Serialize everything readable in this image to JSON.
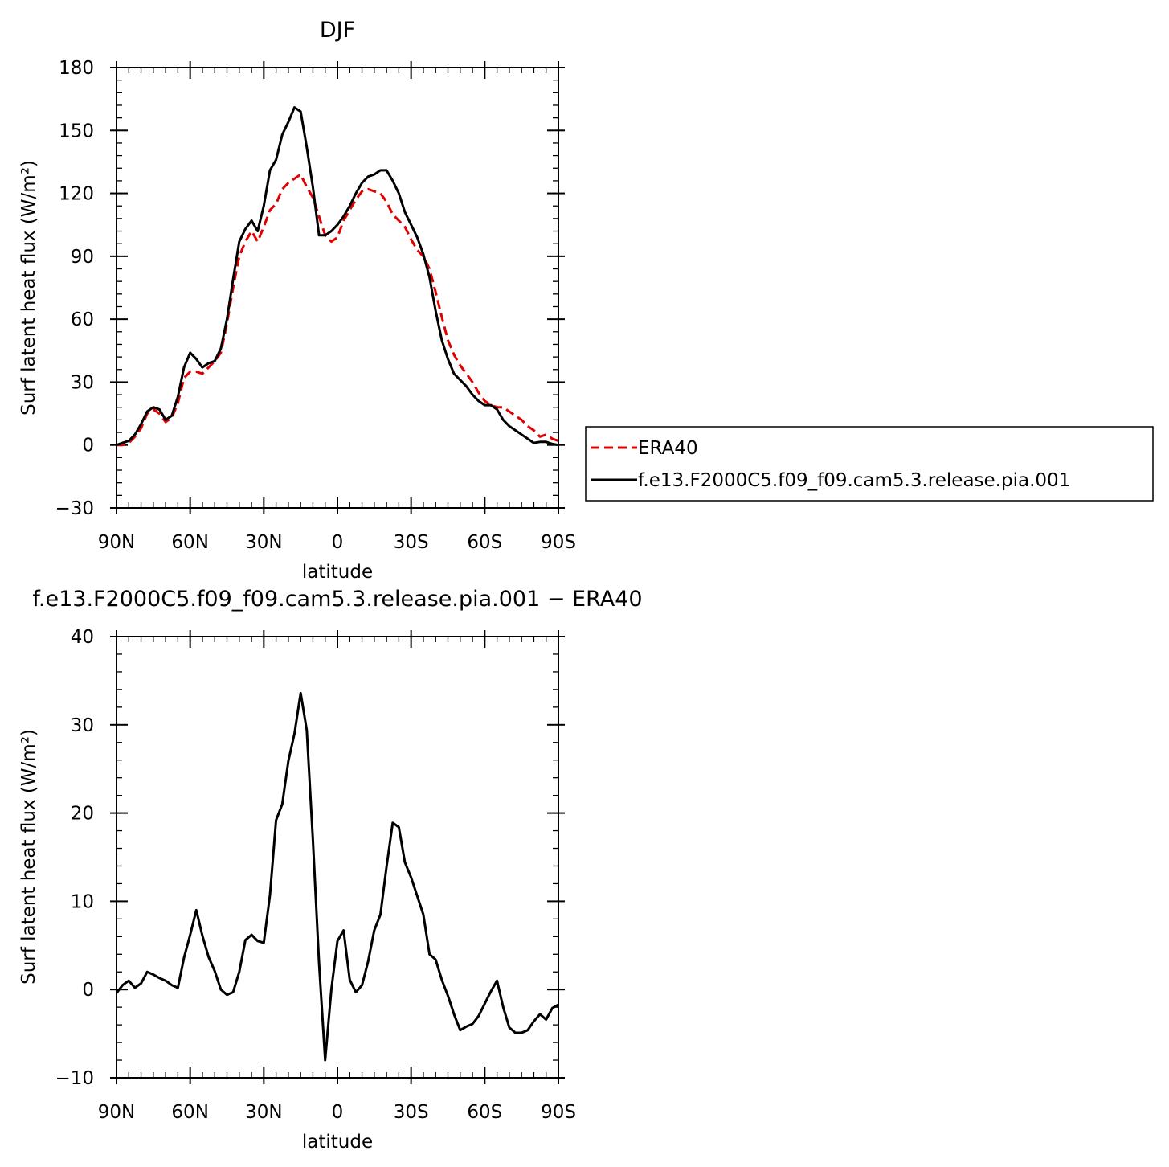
{
  "chart_data": [
    {
      "type": "line",
      "title": "DJF",
      "xlabel": "latitude",
      "ylabel": "Surf latent heat flux (W/m²)",
      "xlim": [
        90,
        -90
      ],
      "ylim": [
        -30,
        180
      ],
      "x_ticks": [
        {
          "value": 90,
          "label": "90N"
        },
        {
          "value": 60,
          "label": "60N"
        },
        {
          "value": 30,
          "label": "30N"
        },
        {
          "value": 0,
          "label": "0"
        },
        {
          "value": -30,
          "label": "30S"
        },
        {
          "value": -60,
          "label": "60S"
        },
        {
          "value": -90,
          "label": "90S"
        }
      ],
      "y_ticks": [
        -30,
        0,
        30,
        60,
        90,
        120,
        150,
        180
      ],
      "y_tick_labels": [
        "−30",
        "0",
        "30",
        "60",
        "90",
        "120",
        "150",
        "180"
      ],
      "legend_position": "right",
      "legend": [
        "ERA40",
        "f.e13.F2000C5.f09_f09.cam5.3.release.pia.001"
      ],
      "series": [
        {
          "name": "ERA40",
          "color": "#e00000",
          "dash": "dashed",
          "points": [
            [
              90,
              0
            ],
            [
              87.5,
              0
            ],
            [
              85,
              1
            ],
            [
              82.5,
              4
            ],
            [
              80,
              8
            ],
            [
              77.5,
              15
            ],
            [
              75,
              17
            ],
            [
              72.5,
              15
            ],
            [
              70,
              11
            ],
            [
              67.5,
              13
            ],
            [
              65,
              20
            ],
            [
              62.5,
              32
            ],
            [
              60,
              35
            ],
            [
              57.5,
              35
            ],
            [
              55,
              34
            ],
            [
              52.5,
              37
            ],
            [
              50,
              40
            ],
            [
              47.5,
              44
            ],
            [
              45,
              58
            ],
            [
              42.5,
              75
            ],
            [
              40,
              90
            ],
            [
              37.5,
              97
            ],
            [
              35,
              102
            ],
            [
              32.5,
              97
            ],
            [
              30,
              104
            ],
            [
              27.5,
              112
            ],
            [
              25,
              115
            ],
            [
              22.5,
              122
            ],
            [
              20,
              125
            ],
            [
              17.5,
              127
            ],
            [
              15,
              129
            ],
            [
              12.5,
              123
            ],
            [
              10,
              118
            ],
            [
              7.5,
              109
            ],
            [
              5,
              100
            ],
            [
              2.5,
              97
            ],
            [
              0,
              99
            ],
            [
              -2.5,
              107
            ],
            [
              -5,
              112
            ],
            [
              -7.5,
              117
            ],
            [
              -10,
              121
            ],
            [
              -12.5,
              122
            ],
            [
              -15,
              121
            ],
            [
              -17.5,
              120
            ],
            [
              -20,
              116
            ],
            [
              -22.5,
              110
            ],
            [
              -25,
              107
            ],
            [
              -27.5,
              104
            ],
            [
              -30,
              98
            ],
            [
              -32.5,
              93
            ],
            [
              -35,
              90
            ],
            [
              -37.5,
              84
            ],
            [
              -40,
              73
            ],
            [
              -42.5,
              61
            ],
            [
              -45,
              50
            ],
            [
              -47.5,
              43
            ],
            [
              -50,
              38
            ],
            [
              -52.5,
              34
            ],
            [
              -55,
              30
            ],
            [
              -57.5,
              25
            ],
            [
              -60,
              21
            ],
            [
              -62.5,
              19
            ],
            [
              -65,
              18
            ],
            [
              -67.5,
              18
            ],
            [
              -70,
              16
            ],
            [
              -72.5,
              14
            ],
            [
              -75,
              12
            ],
            [
              -77.5,
              9
            ],
            [
              -80,
              7
            ],
            [
              -82.5,
              4
            ],
            [
              -85,
              5
            ],
            [
              -87.5,
              3
            ],
            [
              -90,
              2
            ]
          ]
        },
        {
          "name": "f.e13.F2000C5.f09_f09.cam5.3.release.pia.001",
          "color": "#000000",
          "dash": "solid",
          "points": [
            [
              90,
              0
            ],
            [
              87.5,
              1
            ],
            [
              85,
              2
            ],
            [
              82.5,
              5
            ],
            [
              80,
              10
            ],
            [
              77.5,
              16
            ],
            [
              75,
              18
            ],
            [
              72.5,
              17
            ],
            [
              70,
              12
            ],
            [
              67.5,
              14
            ],
            [
              65,
              23
            ],
            [
              62.5,
              37
            ],
            [
              60,
              44
            ],
            [
              57.5,
              41
            ],
            [
              55,
              37
            ],
            [
              52.5,
              39
            ],
            [
              50,
              40
            ],
            [
              47.5,
              46
            ],
            [
              45,
              60
            ],
            [
              42.5,
              79
            ],
            [
              40,
              97
            ],
            [
              37.5,
              103
            ],
            [
              35,
              107
            ],
            [
              32.5,
              102
            ],
            [
              30,
              114
            ],
            [
              27.5,
              131
            ],
            [
              25,
              136
            ],
            [
              22.5,
              148
            ],
            [
              20,
              154
            ],
            [
              17.5,
              161
            ],
            [
              15,
              159
            ],
            [
              12.5,
              142
            ],
            [
              10,
              123
            ],
            [
              7.5,
              100
            ],
            [
              5,
              100
            ],
            [
              2.5,
              102
            ],
            [
              0,
              105
            ],
            [
              -2.5,
              109
            ],
            [
              -5,
              114
            ],
            [
              -7.5,
              120
            ],
            [
              -10,
              125
            ],
            [
              -12.5,
              128
            ],
            [
              -15,
              129
            ],
            [
              -17.5,
              131
            ],
            [
              -20,
              131
            ],
            [
              -22.5,
              126
            ],
            [
              -25,
              120
            ],
            [
              -27.5,
              111
            ],
            [
              -30,
              105
            ],
            [
              -32.5,
              99
            ],
            [
              -35,
              91
            ],
            [
              -37.5,
              80
            ],
            [
              -40,
              64
            ],
            [
              -42.5,
              50
            ],
            [
              -45,
              41
            ],
            [
              -47.5,
              34
            ],
            [
              -50,
              31
            ],
            [
              -52.5,
              28
            ],
            [
              -55,
              24
            ],
            [
              -57.5,
              21
            ],
            [
              -60,
              19
            ],
            [
              -62.5,
              19
            ],
            [
              -65,
              17
            ],
            [
              -67.5,
              12
            ],
            [
              -70,
              9
            ],
            [
              -72.5,
              7
            ],
            [
              -75,
              5
            ],
            [
              -77.5,
              3
            ],
            [
              -80,
              1
            ],
            [
              -82.5,
              1.5
            ],
            [
              -85,
              1.5
            ],
            [
              -87.5,
              0.5
            ],
            [
              -90,
              0
            ]
          ]
        }
      ]
    },
    {
      "type": "line",
      "title": "f.e13.F2000C5.f09_f09.cam5.3.release.pia.001 − ERA40",
      "xlabel": "latitude",
      "ylabel": "Surf latent heat flux (W/m²)",
      "xlim": [
        90,
        -90
      ],
      "ylim": [
        -10,
        40
      ],
      "x_ticks": [
        {
          "value": 90,
          "label": "90N"
        },
        {
          "value": 60,
          "label": "60N"
        },
        {
          "value": 30,
          "label": "30N"
        },
        {
          "value": 0,
          "label": "0"
        },
        {
          "value": -30,
          "label": "30S"
        },
        {
          "value": -60,
          "label": "60S"
        },
        {
          "value": -90,
          "label": "90S"
        }
      ],
      "y_ticks": [
        -10,
        0,
        10,
        20,
        30,
        40
      ],
      "y_tick_labels": [
        "−10",
        "0",
        "10",
        "20",
        "30",
        "40"
      ],
      "series": [
        {
          "color": "#000000",
          "dash": "solid",
          "points": [
            [
              90,
              -0.4
            ],
            [
              87.5,
              0.5
            ],
            [
              85,
              1
            ],
            [
              82.5,
              0.2
            ],
            [
              80,
              0.7
            ],
            [
              77.5,
              2
            ],
            [
              75,
              1.7
            ],
            [
              72.5,
              1.3
            ],
            [
              70,
              1
            ],
            [
              67.5,
              0.5
            ],
            [
              65,
              0.2
            ],
            [
              62.5,
              3.6
            ],
            [
              60,
              6.2
            ],
            [
              57.5,
              9
            ],
            [
              55,
              6.1
            ],
            [
              52.5,
              3.7
            ],
            [
              50,
              2.1
            ],
            [
              47.5,
              0
            ],
            [
              45,
              -0.6
            ],
            [
              42.5,
              -0.3
            ],
            [
              40,
              2
            ],
            [
              37.5,
              5.6
            ],
            [
              35,
              6.2
            ],
            [
              32.5,
              5.5
            ],
            [
              30,
              5.3
            ],
            [
              27.5,
              10.7
            ],
            [
              25,
              19.2
            ],
            [
              22.5,
              21
            ],
            [
              20,
              25.9
            ],
            [
              17.5,
              29
            ],
            [
              15,
              33.6
            ],
            [
              12.5,
              29.4
            ],
            [
              10,
              17
            ],
            [
              7.5,
              3
            ],
            [
              5,
              -8
            ],
            [
              2.5,
              0
            ],
            [
              0,
              5.5
            ],
            [
              -2.5,
              6.7
            ],
            [
              -5,
              1.1
            ],
            [
              -7.5,
              -0.3
            ],
            [
              -10,
              0.5
            ],
            [
              -12.5,
              3.2
            ],
            [
              -15,
              6.7
            ],
            [
              -17.5,
              8.5
            ],
            [
              -20,
              13.9
            ],
            [
              -22.5,
              18.9
            ],
            [
              -25,
              18.4
            ],
            [
              -27.5,
              14.4
            ],
            [
              -30,
              12.7
            ],
            [
              -32.5,
              10.6
            ],
            [
              -35,
              8.5
            ],
            [
              -37.5,
              4
            ],
            [
              -40,
              3.4
            ],
            [
              -42.5,
              1.1
            ],
            [
              -45,
              -0.7
            ],
            [
              -47.5,
              -2.8
            ],
            [
              -50,
              -4.6
            ],
            [
              -52.5,
              -4.2
            ],
            [
              -55,
              -3.9
            ],
            [
              -57.5,
              -3
            ],
            [
              -60,
              -1.6
            ],
            [
              -62.5,
              -0.2
            ],
            [
              -65,
              1
            ],
            [
              -67.5,
              -2
            ],
            [
              -70,
              -4.3
            ],
            [
              -72.5,
              -4.9
            ],
            [
              -75,
              -4.9
            ],
            [
              -77.5,
              -4.6
            ],
            [
              -80,
              -3.6
            ],
            [
              -82.5,
              -2.8
            ],
            [
              -85,
              -3.4
            ],
            [
              -87.5,
              -2.1
            ],
            [
              -90,
              -1.7
            ]
          ]
        }
      ]
    }
  ]
}
